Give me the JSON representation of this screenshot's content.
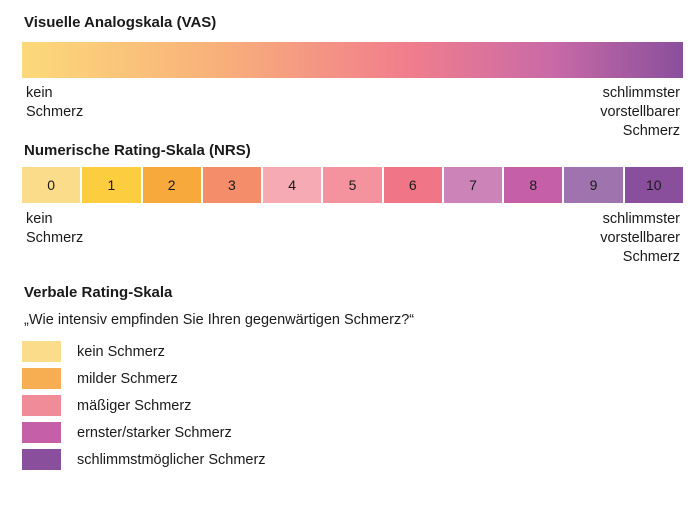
{
  "vas": {
    "title": "Visuelle Analogskala (VAS)",
    "left_label": "kein\nSchmerz",
    "right_label": "schlimmster\nvorstellbarer\nSchmerz"
  },
  "nrs": {
    "title": "Numerische Rating-Skala (NRS)",
    "cells": [
      {
        "label": "0",
        "color": "#fbdc8a"
      },
      {
        "label": "1",
        "color": "#fccd3e"
      },
      {
        "label": "2",
        "color": "#f7a93c"
      },
      {
        "label": "3",
        "color": "#f48d6a"
      },
      {
        "label": "4",
        "color": "#f6aab4"
      },
      {
        "label": "5",
        "color": "#f4939e"
      },
      {
        "label": "6",
        "color": "#f07687"
      },
      {
        "label": "7",
        "color": "#cc84b8"
      },
      {
        "label": "8",
        "color": "#c560a8"
      },
      {
        "label": "9",
        "color": "#9f74ae"
      },
      {
        "label": "10",
        "color": "#8a4f9c"
      }
    ],
    "left_label": "kein\nSchmerz",
    "right_label": "schlimmster\nvorstellbarer\nSchmerz"
  },
  "vrs": {
    "title": "Verbale Rating-Skala",
    "question": "„Wie intensiv empfinden Sie Ihren gegenwärtigen Schmerz?“",
    "items": [
      {
        "label": "kein Schmerz",
        "color": "#fbdc8a"
      },
      {
        "label": "milder Schmerz",
        "color": "#f7ae52"
      },
      {
        "label": "mäßiger Schmerz",
        "color": "#f08c98"
      },
      {
        "label": "ernster/starker Schmerz",
        "color": "#c560a8"
      },
      {
        "label": "schlimmstmöglicher Schmerz",
        "color": "#8a4f9c"
      }
    ]
  }
}
